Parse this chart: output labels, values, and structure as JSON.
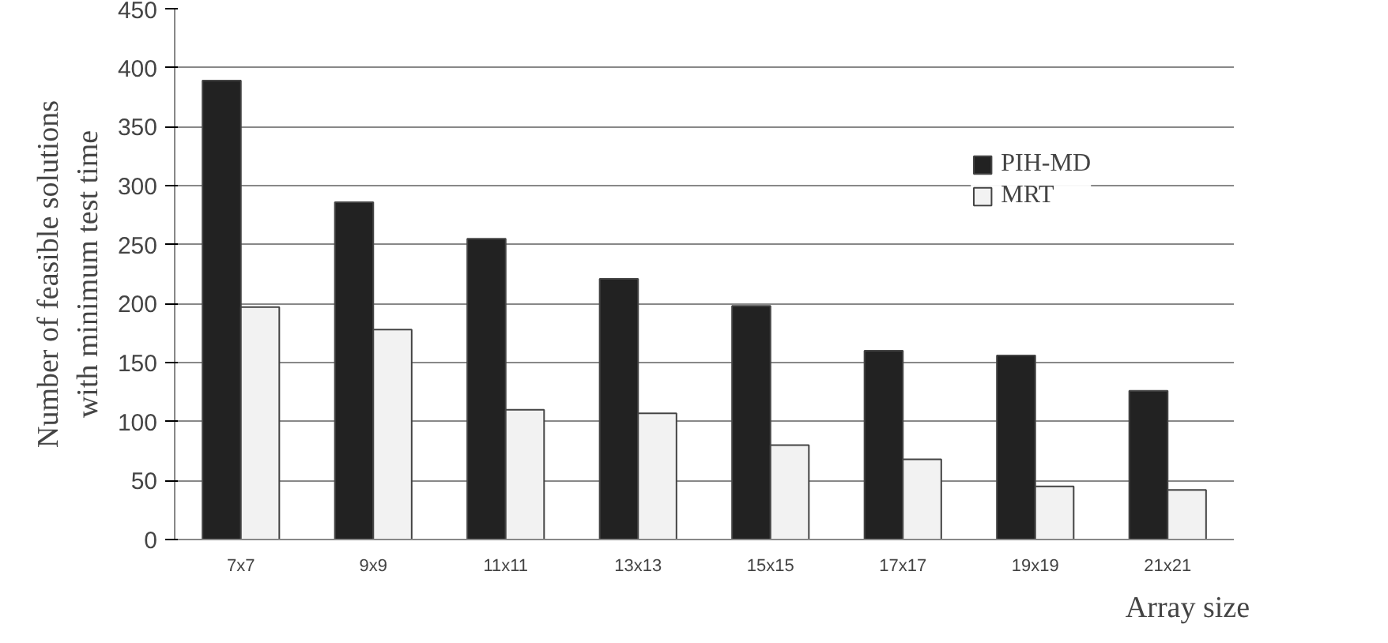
{
  "chart_data": {
    "type": "bar",
    "xlabel": "Array size",
    "ylabel": "Number of feasible solutions\nwith minimum test time",
    "categories": [
      "7x7",
      "9x9",
      "11x11",
      "13x13",
      "15x15",
      "17x17",
      "19x19",
      "21x21"
    ],
    "series": [
      {
        "name": "PIH-MD",
        "color": "#222222",
        "values": [
          389,
          286,
          255,
          221,
          198,
          160,
          156,
          126
        ]
      },
      {
        "name": "MRT",
        "color": "#f2f2f2",
        "values": [
          197,
          178,
          110,
          107,
          80,
          68,
          45,
          42
        ]
      }
    ],
    "ylim": [
      0,
      450
    ],
    "yticks": [
      0,
      50,
      100,
      150,
      200,
      250,
      300,
      350,
      400,
      450
    ],
    "grid": "y",
    "legend": "top right"
  }
}
